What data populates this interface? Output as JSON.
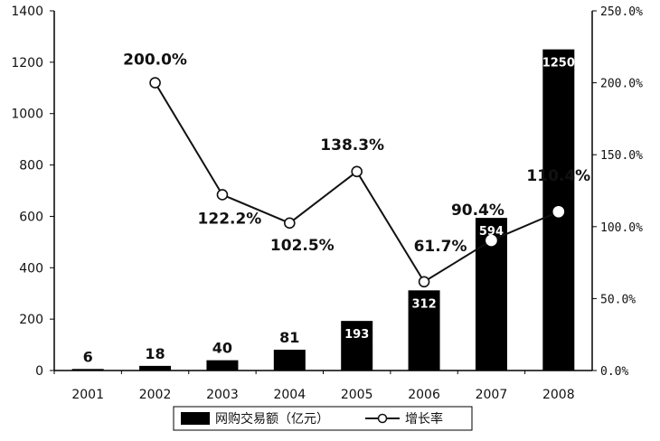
{
  "chart_data": {
    "type": "bar",
    "categories": [
      "2001",
      "2002",
      "2003",
      "2004",
      "2005",
      "2006",
      "2007",
      "2008"
    ],
    "series": [
      {
        "name": "网购交易额（亿元）",
        "type": "bar",
        "axis": "left",
        "values": [
          6,
          18,
          40,
          81,
          193,
          312,
          594,
          1250
        ],
        "labels": [
          "6",
          "18",
          "40",
          "81",
          "193",
          "312",
          "594",
          "1250"
        ]
      },
      {
        "name": "增长率",
        "type": "line",
        "axis": "right",
        "values": [
          null,
          200.0,
          122.2,
          102.5,
          138.3,
          61.7,
          90.4,
          110.4
        ],
        "labels": [
          "",
          "200.0%",
          "122.2%",
          "102.5%",
          "138.3%",
          "61.7%",
          "90.4%",
          "110.4%"
        ]
      }
    ],
    "ylim": [
      0,
      1400
    ],
    "yticks": [
      "0",
      "200",
      "400",
      "600",
      "800",
      "1000",
      "1200",
      "1400"
    ],
    "y2lim": [
      0,
      250
    ],
    "y2ticks": [
      "0.0%",
      "50.0%",
      "100.0%",
      "150.0%",
      "200.0%",
      "250.0%"
    ],
    "legend": {
      "position": "bottom",
      "entries": [
        "网购交易额（亿元）",
        "增长率"
      ]
    },
    "colors": {
      "bar": "#000000",
      "line": "#111111",
      "marker_fill": "#ffffff"
    }
  }
}
